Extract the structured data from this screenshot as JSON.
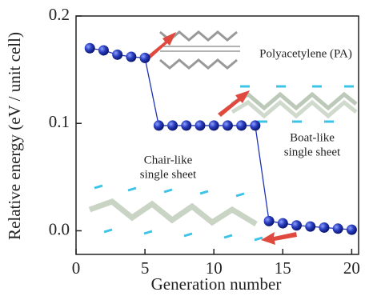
{
  "chart_data": {
    "type": "scatter",
    "x_label": "Generation number",
    "y_label": "Relative energy (eV / unit cell)",
    "x": [
      1,
      2,
      3,
      4,
      5,
      6,
      7,
      8,
      9,
      10,
      11,
      12,
      13,
      14,
      15,
      16,
      17,
      18,
      19,
      20
    ],
    "series": [
      {
        "color": "#1f35b5",
        "values": [
          0.17,
          0.168,
          0.164,
          0.162,
          0.161,
          0.098,
          0.098,
          0.098,
          0.098,
          0.098,
          0.098,
          0.098,
          0.098,
          0.009,
          0.007,
          0.005,
          0.004,
          0.003,
          0.002,
          0.001
        ]
      }
    ],
    "xlim": [
      0,
      20.5
    ],
    "ylim": [
      -0.022,
      0.2
    ],
    "xticks": [
      0,
      5,
      10,
      15,
      20
    ],
    "yticks": [
      {
        "value": 0,
        "label": "0.0"
      },
      0.1,
      0.2
    ],
    "annotations": [
      {
        "lines": [
          "Polyacetylene (PA)"
        ]
      },
      {
        "lines": [
          "Boat-like",
          "single sheet"
        ]
      },
      {
        "lines": [
          "Chair-like",
          "single sheet"
        ]
      }
    ]
  }
}
